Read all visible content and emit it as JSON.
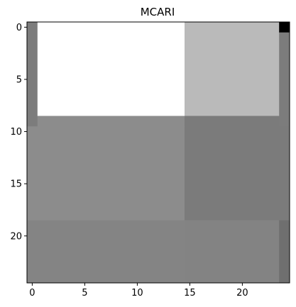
{
  "chart_data": {
    "type": "heatmap",
    "title": "MCARI",
    "xlabel": "",
    "ylabel": "",
    "colormap": "gray",
    "x_range": [
      -0.5,
      24.5
    ],
    "y_range": [
      24.5,
      -0.5
    ],
    "xticks": [
      0,
      5,
      10,
      15,
      20
    ],
    "yticks": [
      0,
      5,
      10,
      15,
      20
    ],
    "grid": false,
    "regions": [
      {
        "x0": 0,
        "x1": 0,
        "y0": 0,
        "y1": 9,
        "gray": "#7c7c7c"
      },
      {
        "x0": 1,
        "x1": 14,
        "y0": 0,
        "y1": 8,
        "gray": "#ffffff"
      },
      {
        "x0": 15,
        "x1": 23,
        "y0": 0,
        "y1": 8,
        "gray": "#bababa"
      },
      {
        "x0": 24,
        "x1": 24,
        "y0": 0,
        "y1": 0,
        "gray": "#000000"
      },
      {
        "x0": 24,
        "x1": 24,
        "y0": 1,
        "y1": 9,
        "gray": "#7c7c7c"
      },
      {
        "x0": 1,
        "x1": 14,
        "y0": 9,
        "y1": 9,
        "gray": "#8c8c8c"
      },
      {
        "x0": 15,
        "x1": 23,
        "y0": 9,
        "y1": 9,
        "gray": "#7b7b7b"
      },
      {
        "x0": 0,
        "x1": 14,
        "y0": 10,
        "y1": 18,
        "gray": "#8c8c8c"
      },
      {
        "x0": 15,
        "x1": 24,
        "y0": 10,
        "y1": 18,
        "gray": "#7b7b7b"
      },
      {
        "x0": 0,
        "x1": 14,
        "y0": 19,
        "y1": 24,
        "gray": "#848484"
      },
      {
        "x0": 15,
        "x1": 23,
        "y0": 19,
        "y1": 24,
        "gray": "#838383"
      },
      {
        "x0": 24,
        "x1": 24,
        "y0": 19,
        "y1": 24,
        "gray": "#6f6f6f"
      }
    ]
  }
}
